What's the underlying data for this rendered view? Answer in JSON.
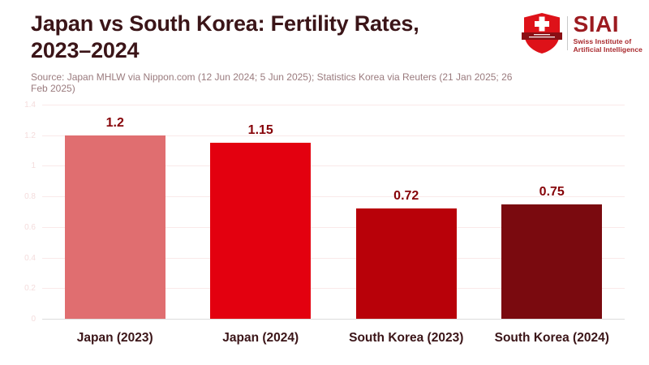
{
  "header": {
    "title_line1": "Japan vs South Korea: Fertility Rates,",
    "title_line2": "2023–2024",
    "source": "Source: Japan MHLW via Nippon.com (12 Jun 2024; 5 Jun 2025); Statistics Korea via Reuters (21 Jan 2025; 26 Feb 2025)"
  },
  "logo": {
    "acronym": "SIAI",
    "name_line1": "Swiss Institute of",
    "name_line2": "Artificial Intelligence",
    "shield_color": "#DE1219",
    "ribbon_color": "#8A0F14",
    "text_color": "#9C1B20"
  },
  "chart_data": {
    "type": "bar",
    "title": "Japan vs South Korea: Fertility Rates, 2023–2024",
    "categories": [
      "Japan (2023)",
      "Japan (2024)",
      "South Korea (2023)",
      "South Korea (2024)"
    ],
    "values": [
      1.2,
      1.15,
      0.72,
      0.75
    ],
    "value_labels": [
      "1.2",
      "1.15",
      "0.72",
      "0.75"
    ],
    "bar_colors": [
      "#E06E70",
      "#E3000F",
      "#B80109",
      "#7A0A0F"
    ],
    "xlabel": "",
    "ylabel": "",
    "ylim": [
      0,
      1.4
    ],
    "y_ticks": [
      0,
      0.2,
      0.4,
      0.6,
      0.8,
      1,
      1.2,
      1.4
    ],
    "y_tick_labels": [
      "0",
      "0.2",
      "0.4",
      "0.6",
      "0.8",
      "1",
      "1.2",
      "1.4"
    ],
    "grid": true,
    "legend": false,
    "value_label_color": "#860308",
    "category_label_color": "#3B1518",
    "gridline_color": "#FAE9E9",
    "baseline_color": "#DCDCDC"
  }
}
